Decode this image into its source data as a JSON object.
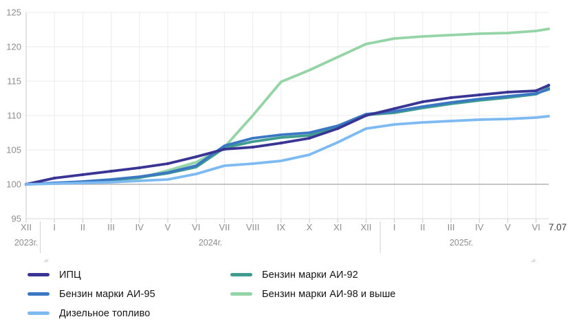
{
  "chart": {
    "y_axis": {
      "min": 95,
      "max": 125,
      "step": 5,
      "tick_labels": [
        "95",
        "100",
        "105",
        "110",
        "115",
        "120",
        "125"
      ]
    },
    "x_axis": {
      "tick_labels": [
        "XII",
        "I",
        "II",
        "III",
        "IV",
        "V",
        "VI",
        "VII",
        "VIII",
        "IX",
        "X",
        "XI",
        "XII",
        "I",
        "II",
        "III",
        "IV",
        "V",
        "VI"
      ],
      "end_label": "7.07",
      "year_labels": [
        "2023г.",
        "2024г.",
        "2025г."
      ]
    },
    "colors": {
      "grid": "#ebebeb",
      "grid_bottom": "#d8d8d8",
      "baseline_100": "#b2b2b2",
      "axis": "#c9c9c9",
      "separator": "#cfcfcf",
      "tick_text": "#8c8c8c",
      "end_label_text": "#3a3a3a",
      "handle": "#cccccc"
    }
  },
  "chart_data": {
    "type": "line",
    "x": [
      "XII",
      "I",
      "II",
      "III",
      "IV",
      "V",
      "VI",
      "VII",
      "VIII",
      "IX",
      "X",
      "XI",
      "XII",
      "I",
      "II",
      "III",
      "IV",
      "V",
      "VI",
      "7.07"
    ],
    "x_note": "XII = Dec 2023; next 12 = months of 2024; next 6 = months of 2025; final point = 7.07.2025",
    "ylim": [
      95,
      125
    ],
    "baseline": 100,
    "grid": true,
    "legend_position": "bottom",
    "series": [
      {
        "id": "ai98",
        "name": "Бензин марки АИ-98 и выше",
        "color": "#94d4a6",
        "values": [
          100,
          100.1,
          100.3,
          100.5,
          100.9,
          102.0,
          103.2,
          105.4,
          110.0,
          114.9,
          116.6,
          118.5,
          120.4,
          121.2,
          121.5,
          121.7,
          121.9,
          122.0,
          122.3,
          122.6
        ]
      },
      {
        "id": "ai92",
        "name": "Бензин марки АИ-92",
        "color": "#3f9c8f",
        "values": [
          100,
          100.2,
          100.3,
          100.6,
          101.0,
          101.6,
          102.5,
          105.3,
          106.2,
          106.8,
          107.1,
          108.3,
          110.1,
          110.4,
          111.1,
          111.7,
          112.2,
          112.6,
          113.1,
          114.0
        ]
      },
      {
        "id": "ai95",
        "name": "Бензин марки АИ-95",
        "color": "#3b78c4",
        "values": [
          100,
          100.2,
          100.4,
          100.7,
          101.1,
          101.7,
          102.7,
          105.6,
          106.7,
          107.2,
          107.5,
          108.5,
          110.2,
          110.6,
          111.3,
          111.9,
          112.4,
          112.8,
          113.2,
          113.8
        ]
      },
      {
        "id": "ipc",
        "name": "ИПЦ",
        "color": "#3a3494",
        "markers": true,
        "values": [
          100,
          100.9,
          101.4,
          101.9,
          102.4,
          103.0,
          104.0,
          105.1,
          105.4,
          106.0,
          106.7,
          108.1,
          110.0,
          111.0,
          112.0,
          112.6,
          113.0,
          113.4,
          113.6,
          114.4
        ]
      },
      {
        "id": "diesel",
        "name": "Дизельное топливо",
        "color": "#7dbaf2",
        "values": [
          100,
          100.1,
          100.2,
          100.3,
          100.5,
          100.7,
          101.5,
          102.7,
          103.0,
          103.4,
          104.3,
          106.1,
          108.1,
          108.7,
          109.0,
          109.2,
          109.4,
          109.5,
          109.7,
          109.9
        ]
      }
    ]
  },
  "legend": {
    "rows": [
      [
        "ИПЦ",
        "Бензин марки АИ-92"
      ],
      [
        "Бензин марки АИ-95",
        "Бензин марки АИ-98 и выше"
      ],
      [
        "Дизельное топливо"
      ]
    ]
  }
}
